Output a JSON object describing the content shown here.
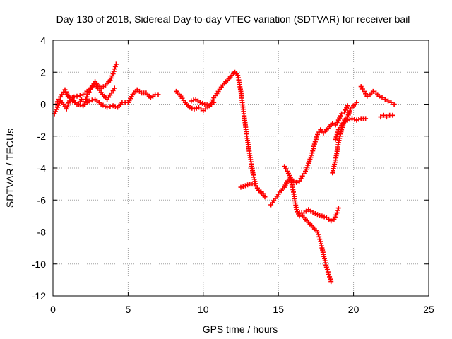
{
  "chart_data": {
    "type": "scatter",
    "title": "Day 130 of 2018, Sidereal Day-to-day VTEC variation (SDTVAR) for receiver bail",
    "xlabel": "GPS time / hours",
    "ylabel": "SDTVAR / TECUs",
    "xlim": [
      0,
      25
    ],
    "ylim": [
      -12,
      4
    ],
    "xticks": [
      0,
      5,
      10,
      15,
      20,
      25
    ],
    "yticks": [
      -12,
      -10,
      -8,
      -6,
      -4,
      -2,
      0,
      2,
      4
    ],
    "grid": true,
    "marker": "+",
    "colors": {
      "series": "#ff0000",
      "grid": "#a0a0a0",
      "axis": "#000000"
    },
    "series": [
      {
        "segments": [
          [
            [
              0.1,
              -0.6
            ],
            [
              0.3,
              -0.2
            ],
            [
              0.5,
              0.2
            ],
            [
              0.7,
              0.0
            ],
            [
              0.9,
              -0.3
            ],
            [
              1.1,
              0.2
            ],
            [
              1.3,
              0.4
            ],
            [
              1.5,
              0.1
            ],
            [
              1.7,
              0.0
            ],
            [
              1.9,
              0.3
            ],
            [
              2.1,
              0.0
            ],
            [
              2.3,
              0.6
            ],
            [
              2.5,
              0.9
            ],
            [
              2.8,
              1.4
            ],
            [
              3.0,
              1.2
            ],
            [
              3.2,
              1.0
            ],
            [
              3.5,
              1.2
            ],
            [
              3.8,
              1.5
            ],
            [
              4.0,
              1.9
            ],
            [
              4.2,
              2.5
            ]
          ],
          [
            [
              0.2,
              0.0
            ],
            [
              0.4,
              0.3
            ],
            [
              0.6,
              0.6
            ],
            [
              0.8,
              0.9
            ],
            [
              1.0,
              0.5
            ],
            [
              1.3,
              0.2
            ],
            [
              1.6,
              0.0
            ],
            [
              2.0,
              -0.1
            ],
            [
              2.4,
              0.2
            ],
            [
              2.8,
              0.3
            ],
            [
              3.2,
              0.0
            ],
            [
              3.6,
              -0.2
            ],
            [
              4.0,
              -0.1
            ],
            [
              4.3,
              -0.2
            ],
            [
              4.6,
              0.1
            ],
            [
              5.0,
              0.1
            ],
            [
              5.3,
              0.6
            ],
            [
              5.6,
              0.9
            ],
            [
              5.9,
              0.7
            ],
            [
              6.2,
              0.7
            ],
            [
              6.5,
              0.4
            ],
            [
              6.8,
              0.6
            ],
            [
              7.0,
              0.6
            ]
          ],
          [
            [
              1.2,
              0.4
            ],
            [
              1.6,
              0.5
            ],
            [
              2.0,
              0.6
            ],
            [
              2.4,
              0.9
            ],
            [
              2.6,
              1.1
            ],
            [
              2.8,
              1.2
            ],
            [
              3.0,
              1.0
            ],
            [
              3.3,
              0.6
            ],
            [
              3.6,
              0.3
            ],
            [
              3.9,
              0.7
            ],
            [
              4.1,
              1.0
            ]
          ],
          [
            [
              8.2,
              0.8
            ],
            [
              8.5,
              0.5
            ],
            [
              8.8,
              0.1
            ],
            [
              9.1,
              -0.2
            ],
            [
              9.4,
              -0.3
            ],
            [
              9.7,
              -0.2
            ],
            [
              10.0,
              -0.4
            ],
            [
              10.3,
              -0.2
            ],
            [
              10.5,
              0.0
            ],
            [
              10.7,
              0.4
            ],
            [
              11.0,
              0.8
            ],
            [
              11.3,
              1.2
            ],
            [
              11.6,
              1.5
            ],
            [
              11.9,
              1.8
            ],
            [
              12.1,
              2.0
            ],
            [
              12.3,
              1.8
            ],
            [
              12.5,
              0.8
            ],
            [
              12.7,
              -0.6
            ],
            [
              12.9,
              -2.0
            ],
            [
              13.1,
              -3.2
            ],
            [
              13.3,
              -4.3
            ],
            [
              13.5,
              -5.1
            ],
            [
              13.7,
              -5.4
            ],
            [
              13.9,
              -5.6
            ],
            [
              14.1,
              -5.8
            ]
          ],
          [
            [
              9.2,
              0.2
            ],
            [
              9.5,
              0.3
            ],
            [
              9.8,
              0.1
            ],
            [
              10.1,
              0.0
            ],
            [
              10.4,
              -0.1
            ],
            [
              10.7,
              0.1
            ]
          ],
          [
            [
              12.5,
              -5.2
            ],
            [
              12.8,
              -5.1
            ],
            [
              13.1,
              -5.0
            ],
            [
              13.4,
              -5.0
            ],
            [
              13.7,
              -5.4
            ],
            [
              14.0,
              -5.6
            ]
          ],
          [
            [
              14.5,
              -6.3
            ],
            [
              14.8,
              -5.9
            ],
            [
              15.1,
              -5.5
            ],
            [
              15.4,
              -5.2
            ],
            [
              15.6,
              -4.8
            ],
            [
              15.8,
              -4.6
            ],
            [
              16.0,
              -4.8
            ],
            [
              16.2,
              -4.9
            ],
            [
              16.4,
              -4.8
            ],
            [
              16.6,
              -4.5
            ],
            [
              16.8,
              -4.2
            ],
            [
              17.0,
              -3.7
            ],
            [
              17.2,
              -3.2
            ],
            [
              17.4,
              -2.5
            ],
            [
              17.6,
              -1.9
            ],
            [
              17.8,
              -1.6
            ],
            [
              18.0,
              -1.8
            ],
            [
              18.2,
              -1.6
            ],
            [
              18.4,
              -1.4
            ],
            [
              18.6,
              -1.2
            ],
            [
              18.8,
              -1.3
            ],
            [
              19.0,
              -1.0
            ],
            [
              19.2,
              -0.6
            ],
            [
              19.4,
              -0.5
            ],
            [
              19.6,
              -0.1
            ]
          ],
          [
            [
              15.4,
              -3.9
            ],
            [
              15.6,
              -4.2
            ],
            [
              15.8,
              -4.6
            ],
            [
              16.0,
              -5.5
            ],
            [
              16.2,
              -6.6
            ],
            [
              16.4,
              -7.0
            ],
            [
              16.6,
              -7.0
            ],
            [
              16.8,
              -7.2
            ],
            [
              17.0,
              -7.4
            ],
            [
              17.2,
              -7.6
            ],
            [
              17.4,
              -7.8
            ],
            [
              17.6,
              -8.0
            ],
            [
              17.8,
              -8.6
            ],
            [
              18.0,
              -9.4
            ],
            [
              18.2,
              -10.2
            ],
            [
              18.4,
              -10.8
            ],
            [
              18.5,
              -11.1
            ]
          ],
          [
            [
              16.4,
              -6.8
            ],
            [
              16.7,
              -6.8
            ],
            [
              17.0,
              -6.6
            ],
            [
              17.3,
              -6.8
            ],
            [
              17.6,
              -6.9
            ],
            [
              17.9,
              -7.0
            ],
            [
              18.2,
              -7.1
            ],
            [
              18.5,
              -7.3
            ],
            [
              18.7,
              -7.2
            ],
            [
              18.9,
              -6.8
            ],
            [
              19.0,
              -6.5
            ]
          ],
          [
            [
              18.6,
              -4.3
            ],
            [
              18.8,
              -3.5
            ],
            [
              19.0,
              -2.4
            ],
            [
              19.2,
              -1.6
            ],
            [
              19.4,
              -1.0
            ],
            [
              19.6,
              -0.8
            ],
            [
              19.8,
              -0.3
            ],
            [
              20.0,
              -0.1
            ],
            [
              20.2,
              0.1
            ]
          ],
          [
            [
              18.8,
              -2.2
            ],
            [
              19.0,
              -1.6
            ],
            [
              19.3,
              -1.2
            ],
            [
              19.6,
              -1.0
            ],
            [
              19.9,
              -0.9
            ],
            [
              20.2,
              -1.0
            ],
            [
              20.5,
              -0.9
            ],
            [
              20.8,
              -0.9
            ]
          ],
          [
            [
              20.5,
              1.1
            ],
            [
              20.7,
              0.8
            ],
            [
              20.9,
              0.5
            ],
            [
              21.1,
              0.6
            ],
            [
              21.3,
              0.8
            ],
            [
              21.5,
              0.7
            ],
            [
              21.7,
              0.5
            ],
            [
              21.9,
              0.4
            ],
            [
              22.1,
              0.3
            ],
            [
              22.3,
              0.2
            ],
            [
              22.5,
              0.1
            ],
            [
              22.7,
              0.0
            ]
          ],
          [
            [
              21.8,
              -0.8
            ],
            [
              22.0,
              -0.7
            ],
            [
              22.2,
              -0.8
            ],
            [
              22.4,
              -0.7
            ],
            [
              22.6,
              -0.7
            ]
          ]
        ]
      }
    ]
  }
}
